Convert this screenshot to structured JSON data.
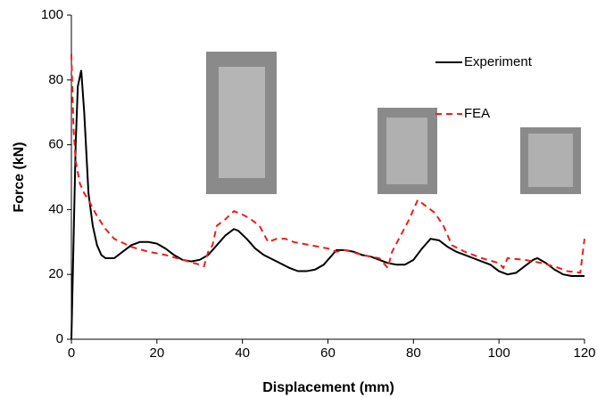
{
  "chart_data": {
    "type": "line",
    "x_label": "Displacement (mm)",
    "y_label": "Force (kN)",
    "xlim": [
      0,
      120
    ],
    "ylim": [
      0,
      100
    ],
    "xticks": [
      0,
      20,
      40,
      60,
      80,
      100,
      120
    ],
    "yticks": [
      0,
      20,
      40,
      60,
      80,
      100
    ],
    "legend": "upper right",
    "series": [
      {
        "name": "Experiment",
        "color": "#000000",
        "dash": "solid",
        "x": [
          0,
          0.5,
          1,
          1.5,
          2.3,
          3,
          4,
          5,
          6,
          7,
          8,
          10,
          12,
          14,
          16,
          18,
          20,
          22,
          24,
          26,
          28,
          30,
          32,
          34,
          36,
          38,
          39,
          41,
          43,
          45,
          48,
          51,
          53,
          55,
          57,
          59,
          61,
          62,
          64,
          66,
          68,
          70,
          72,
          74,
          76,
          78,
          80,
          82,
          84,
          86,
          88,
          90,
          92,
          94,
          96,
          98,
          100,
          102,
          104,
          106,
          108,
          109,
          111,
          113,
          115,
          117,
          119,
          120
        ],
        "values": [
          0,
          30,
          60,
          78,
          83,
          70,
          45,
          35,
          29,
          26,
          25,
          25,
          27,
          29,
          30,
          30,
          29.5,
          28,
          26,
          24.5,
          24,
          24.5,
          26,
          29,
          32,
          34,
          33.5,
          31,
          28,
          26,
          24,
          22,
          21,
          21,
          21.5,
          23,
          26,
          27.5,
          27.5,
          27,
          26,
          25.5,
          24.5,
          23.5,
          23,
          23,
          24.5,
          28,
          31,
          30.5,
          28.5,
          27,
          26,
          25,
          24,
          23,
          21,
          20,
          20.5,
          22.5,
          24.5,
          25,
          23.5,
          21.5,
          20,
          19.5,
          19.5,
          19.5
        ]
      },
      {
        "name": "FEA",
        "color": "#e8201a",
        "dash": "dashed",
        "x": [
          0,
          0.5,
          1,
          2,
          3,
          4,
          6,
          8,
          10,
          14,
          18,
          22,
          26,
          30,
          31,
          32,
          33,
          34,
          36,
          38,
          40,
          42,
          44,
          46,
          48,
          50,
          52,
          56,
          60,
          62,
          64,
          68,
          72,
          74,
          75,
          77,
          79,
          81,
          83,
          85,
          87,
          89,
          92,
          96,
          100,
          101,
          102,
          106,
          110,
          114,
          116,
          119,
          120
        ],
        "values": [
          88,
          65,
          55,
          48,
          45,
          43,
          38,
          34,
          31,
          28.5,
          27,
          26,
          24.5,
          23,
          22.5,
          27,
          29,
          35,
          37,
          39.5,
          38.5,
          37,
          35,
          30,
          31,
          31,
          30,
          29,
          28,
          27,
          27.5,
          26,
          25,
          22,
          27,
          32,
          37,
          43,
          41,
          39,
          35,
          29,
          27,
          25,
          23.5,
          22,
          25,
          24.5,
          23.5,
          22,
          21,
          20.5,
          31
        ]
      }
    ]
  }
}
